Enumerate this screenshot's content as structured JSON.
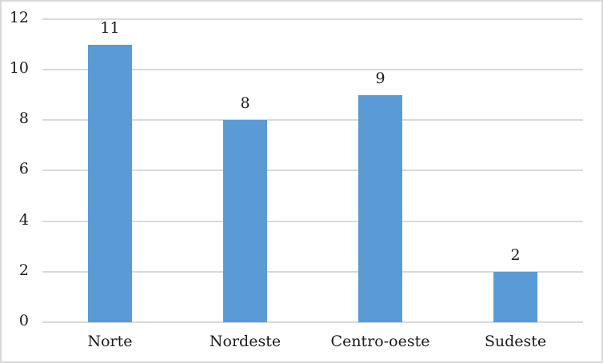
{
  "chart_data": {
    "type": "bar",
    "categories": [
      "Norte",
      "Nordeste",
      "Centro-oeste",
      "Sudeste"
    ],
    "values": [
      11,
      8,
      9,
      2
    ],
    "data_labels": [
      "11",
      "8",
      "9",
      "2"
    ],
    "title": "",
    "xlabel": "",
    "ylabel": "",
    "ylim": [
      0,
      12
    ],
    "yticks": [
      0,
      2,
      4,
      6,
      8,
      10,
      12
    ],
    "grid": true,
    "legend": false,
    "colors": {
      "bar": "#5b9bd5",
      "gridline": "#d9d9d9",
      "border": "#d9d9d9",
      "text": "#1a1a1a",
      "background": "#ffffff"
    }
  }
}
